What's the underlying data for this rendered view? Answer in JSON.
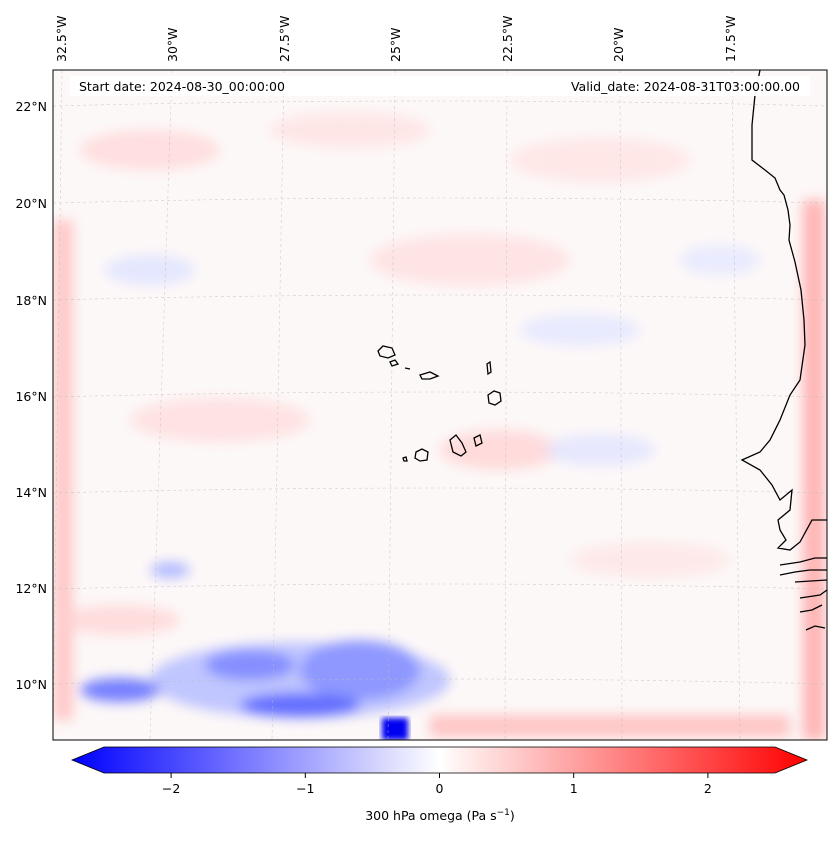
{
  "map": {
    "start_date": "Start date: 2024-08-30_00:00:00",
    "valid_date": "Valid_date: 2024-08-31T03:00:00.00",
    "lon_labels": [
      "32.5°W",
      "30°W",
      "27.5°W",
      "25°W",
      "22.5°W",
      "20°W",
      "17.5°W"
    ],
    "lat_labels": [
      "22°N",
      "20°N",
      "18°N",
      "16°N",
      "14°N",
      "12°N",
      "10°N"
    ]
  },
  "colorbar": {
    "tick_labels": [
      "−2",
      "−1",
      "0",
      "1",
      "2"
    ],
    "tick_values": [
      -2,
      -1,
      0,
      1,
      2
    ],
    "range": [
      -2.5,
      2.5
    ],
    "label": "300 hPa omega (Pa s",
    "label_exp": "−1",
    "label_close": ")",
    "colors": {
      "min": "#0000ff",
      "mid": "#ffffff",
      "max": "#ff0000"
    }
  }
}
